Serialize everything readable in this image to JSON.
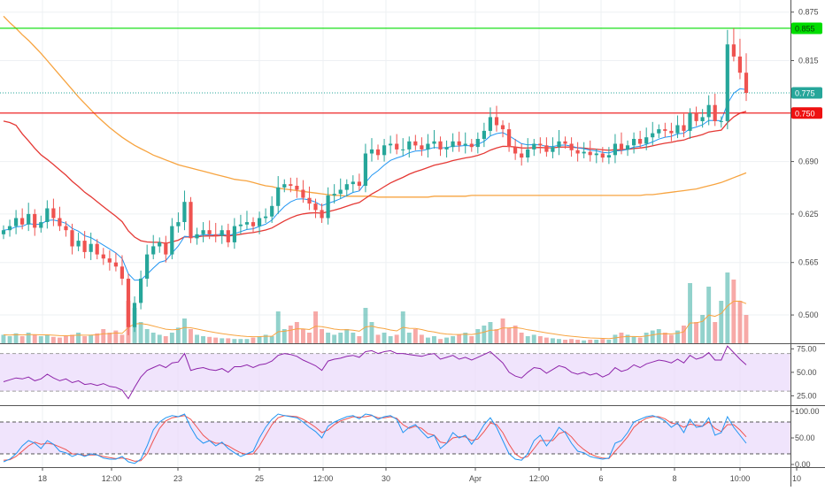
{
  "colors": {
    "up": "#26a69a",
    "down": "#ef5350",
    "ema_fast": "#2196f3",
    "ema_mid": "#e53935",
    "ema_slow": "#f7a440",
    "resistance": "#00dd00",
    "support": "#ee1111",
    "last_price": "#26a69a",
    "rsi_line": "#8e24aa",
    "rsi_band": "#e9d8fb",
    "stoch_k": "#2196f3",
    "stoch_d": "#ef5350",
    "stoch_band": "#e9d8fb",
    "grid": "#eef0f3",
    "axis_text": "#4a4a4a"
  },
  "chart_data": [
    {
      "type": "candlestick",
      "panel": "price",
      "x_ticks": [
        "18",
        "12:00",
        "23",
        "25",
        "12:00",
        "30",
        "Apr",
        "12:00",
        "6",
        "8",
        "10:00",
        "10"
      ],
      "y_ticks": [
        "0.875",
        "0.815",
        "0.750",
        "0.690",
        "0.625",
        "0.565",
        "0.500"
      ],
      "ylim": [
        0.465,
        0.89
      ],
      "price_tag_levels": [
        0.855,
        0.775,
        0.75
      ],
      "levels": [
        {
          "name": "resistance",
          "value": 0.855,
          "label": "0.855"
        },
        {
          "name": "last-price",
          "value": 0.775,
          "label": "0.775"
        },
        {
          "name": "support",
          "value": 0.75,
          "label": "0.750"
        }
      ],
      "candles_close": [
        0.605,
        0.61,
        0.62,
        0.612,
        0.625,
        0.608,
        0.615,
        0.632,
        0.62,
        0.61,
        0.605,
        0.585,
        0.592,
        0.578,
        0.588,
        0.575,
        0.57,
        0.565,
        0.56,
        0.545,
        0.485,
        0.515,
        0.545,
        0.575,
        0.585,
        0.59,
        0.575,
        0.61,
        0.615,
        0.64,
        0.595,
        0.6,
        0.605,
        0.6,
        0.598,
        0.605,
        0.59,
        0.61,
        0.612,
        0.615,
        0.61,
        0.62,
        0.622,
        0.635,
        0.658,
        0.662,
        0.66,
        0.655,
        0.645,
        0.638,
        0.63,
        0.62,
        0.648,
        0.65,
        0.655,
        0.662,
        0.665,
        0.66,
        0.7,
        0.705,
        0.698,
        0.71,
        0.712,
        0.705,
        0.705,
        0.715,
        0.71,
        0.705,
        0.712,
        0.715,
        0.705,
        0.708,
        0.715,
        0.71,
        0.712,
        0.708,
        0.718,
        0.728,
        0.745,
        0.735,
        0.73,
        0.708,
        0.7,
        0.695,
        0.705,
        0.712,
        0.71,
        0.702,
        0.708,
        0.715,
        0.712,
        0.704,
        0.7,
        0.702,
        0.698,
        0.7,
        0.695,
        0.698,
        0.712,
        0.705,
        0.71,
        0.718,
        0.712,
        0.72,
        0.725,
        0.73,
        0.728,
        0.725,
        0.735,
        0.728,
        0.75,
        0.74,
        0.745,
        0.76,
        0.74,
        0.74,
        0.835,
        0.82,
        0.8,
        0.775
      ],
      "candles_open": [
        0.6,
        0.605,
        0.61,
        0.62,
        0.612,
        0.625,
        0.608,
        0.615,
        0.632,
        0.62,
        0.61,
        0.605,
        0.585,
        0.592,
        0.578,
        0.588,
        0.575,
        0.57,
        0.565,
        0.56,
        0.545,
        0.485,
        0.515,
        0.545,
        0.575,
        0.585,
        0.59,
        0.575,
        0.61,
        0.615,
        0.64,
        0.595,
        0.6,
        0.605,
        0.6,
        0.598,
        0.605,
        0.59,
        0.61,
        0.612,
        0.615,
        0.61,
        0.62,
        0.622,
        0.635,
        0.658,
        0.662,
        0.66,
        0.655,
        0.645,
        0.638,
        0.63,
        0.62,
        0.648,
        0.65,
        0.655,
        0.662,
        0.665,
        0.66,
        0.7,
        0.705,
        0.698,
        0.71,
        0.712,
        0.705,
        0.705,
        0.715,
        0.71,
        0.705,
        0.712,
        0.715,
        0.705,
        0.708,
        0.715,
        0.71,
        0.712,
        0.708,
        0.718,
        0.728,
        0.745,
        0.735,
        0.73,
        0.708,
        0.7,
        0.695,
        0.705,
        0.712,
        0.71,
        0.702,
        0.708,
        0.715,
        0.712,
        0.704,
        0.7,
        0.702,
        0.698,
        0.7,
        0.695,
        0.698,
        0.712,
        0.705,
        0.71,
        0.718,
        0.712,
        0.72,
        0.725,
        0.73,
        0.728,
        0.725,
        0.735,
        0.728,
        0.75,
        0.74,
        0.745,
        0.76,
        0.74,
        0.74,
        0.835,
        0.82,
        0.8
      ],
      "ema_slow": [
        0.87,
        0.862,
        0.855,
        0.847,
        0.84,
        0.832,
        0.824,
        0.815,
        0.806,
        0.797,
        0.788,
        0.779,
        0.77,
        0.762,
        0.754,
        0.746,
        0.739,
        0.732,
        0.726,
        0.72,
        0.715,
        0.71,
        0.706,
        0.702,
        0.698,
        0.695,
        0.692,
        0.689,
        0.686,
        0.684,
        0.682,
        0.68,
        0.678,
        0.676,
        0.674,
        0.672,
        0.67,
        0.668,
        0.667,
        0.666,
        0.664,
        0.662,
        0.66,
        0.659,
        0.657,
        0.656,
        0.655,
        0.654,
        0.653,
        0.652,
        0.651,
        0.65,
        0.649,
        0.648,
        0.648,
        0.647,
        0.647,
        0.647,
        0.647,
        0.647,
        0.646,
        0.646,
        0.646,
        0.646,
        0.646,
        0.646,
        0.646,
        0.646,
        0.646,
        0.647,
        0.647,
        0.647,
        0.647,
        0.647,
        0.647,
        0.648,
        0.648,
        0.648,
        0.648,
        0.648,
        0.648,
        0.648,
        0.648,
        0.648,
        0.648,
        0.648,
        0.648,
        0.648,
        0.648,
        0.648,
        0.648,
        0.648,
        0.648,
        0.648,
        0.648,
        0.648,
        0.648,
        0.648,
        0.648,
        0.648,
        0.648,
        0.648,
        0.648,
        0.649,
        0.649,
        0.65,
        0.651,
        0.652,
        0.653,
        0.654,
        0.655,
        0.656,
        0.658,
        0.66,
        0.662,
        0.664,
        0.667,
        0.67,
        0.673,
        0.676
      ],
      "volume": [
        0.12,
        0.1,
        0.14,
        0.1,
        0.15,
        0.12,
        0.1,
        0.12,
        0.09,
        0.08,
        0.1,
        0.12,
        0.15,
        0.1,
        0.12,
        0.14,
        0.2,
        0.15,
        0.18,
        0.12,
        0.6,
        0.5,
        0.3,
        0.2,
        0.15,
        0.12,
        0.1,
        0.15,
        0.22,
        0.35,
        0.2,
        0.12,
        0.1,
        0.09,
        0.08,
        0.07,
        0.07,
        0.06,
        0.06,
        0.06,
        0.08,
        0.1,
        0.12,
        0.1,
        0.45,
        0.2,
        0.25,
        0.3,
        0.2,
        0.15,
        0.45,
        0.2,
        0.15,
        0.12,
        0.15,
        0.2,
        0.15,
        0.1,
        0.5,
        0.3,
        0.12,
        0.15,
        0.1,
        0.12,
        0.45,
        0.15,
        0.2,
        0.12,
        0.08,
        0.1,
        0.06,
        0.08,
        0.1,
        0.12,
        0.15,
        0.1,
        0.2,
        0.25,
        0.3,
        0.2,
        0.35,
        0.22,
        0.25,
        0.15,
        0.1,
        0.12,
        0.1,
        0.08,
        0.07,
        0.06,
        0.05,
        0.06,
        0.05,
        0.04,
        0.05,
        0.05,
        0.06,
        0.05,
        0.12,
        0.15,
        0.12,
        0.1,
        0.08,
        0.15,
        0.18,
        0.2,
        0.15,
        0.12,
        0.18,
        0.25,
        0.85,
        0.3,
        0.4,
        0.8,
        0.3,
        0.6,
        1.0,
        0.9,
        0.6,
        0.4
      ]
    },
    {
      "type": "line",
      "panel": "rsi",
      "y_ticks": [
        "75.00",
        "50.00",
        "25.00"
      ],
      "ylim": [
        15,
        80
      ],
      "bands": [
        30,
        70
      ],
      "values": [
        40,
        42,
        44,
        43,
        45,
        41,
        43,
        48,
        44,
        41,
        43,
        39,
        41,
        37,
        38,
        36,
        38,
        35,
        34,
        31,
        22,
        34,
        45,
        52,
        55,
        58,
        55,
        60,
        61,
        70,
        52,
        54,
        55,
        53,
        52,
        54,
        50,
        56,
        56,
        58,
        55,
        58,
        59,
        62,
        68,
        70,
        69,
        67,
        63,
        60,
        57,
        52,
        62,
        64,
        65,
        67,
        68,
        66,
        72,
        73,
        70,
        72,
        73,
        70,
        70,
        69,
        68,
        67,
        69,
        70,
        64,
        66,
        68,
        64,
        66,
        63,
        66,
        69,
        72,
        66,
        60,
        50,
        46,
        44,
        50,
        55,
        54,
        49,
        53,
        57,
        55,
        50,
        48,
        50,
        47,
        49,
        45,
        48,
        55,
        51,
        53,
        58,
        55,
        59,
        61,
        63,
        62,
        60,
        64,
        60,
        68,
        64,
        66,
        71,
        63,
        63,
        78,
        71,
        64,
        58
      ]
    },
    {
      "type": "line",
      "panel": "stochastic",
      "y_ticks": [
        "100.00",
        "50.00",
        "0.00"
      ],
      "ylim": [
        -5,
        110
      ],
      "bands": [
        20,
        80
      ],
      "k": [
        5,
        10,
        20,
        35,
        45,
        40,
        30,
        45,
        38,
        25,
        22,
        15,
        20,
        15,
        20,
        18,
        12,
        10,
        10,
        15,
        5,
        2,
        10,
        35,
        65,
        80,
        88,
        92,
        90,
        95,
        70,
        50,
        40,
        45,
        35,
        42,
        30,
        22,
        15,
        20,
        25,
        50,
        70,
        85,
        95,
        92,
        90,
        88,
        80,
        70,
        62,
        50,
        72,
        80,
        85,
        90,
        92,
        86,
        95,
        93,
        85,
        90,
        92,
        85,
        60,
        70,
        75,
        62,
        50,
        55,
        30,
        40,
        60,
        50,
        55,
        38,
        55,
        75,
        88,
        70,
        45,
        20,
        10,
        8,
        20,
        45,
        55,
        35,
        50,
        70,
        60,
        40,
        25,
        22,
        15,
        12,
        10,
        12,
        40,
        45,
        60,
        80,
        85,
        90,
        92,
        88,
        82,
        70,
        78,
        60,
        85,
        70,
        72,
        88,
        55,
        60,
        90,
        70,
        55,
        40
      ],
      "d": [
        8,
        9,
        15,
        25,
        35,
        42,
        38,
        40,
        38,
        33,
        28,
        20,
        19,
        17,
        18,
        18,
        15,
        13,
        11,
        12,
        10,
        6,
        7,
        20,
        45,
        68,
        82,
        88,
        90,
        92,
        85,
        70,
        55,
        45,
        40,
        40,
        35,
        28,
        22,
        19,
        20,
        35,
        55,
        75,
        88,
        92,
        91,
        90,
        85,
        78,
        70,
        60,
        65,
        75,
        82,
        86,
        90,
        89,
        90,
        92,
        88,
        88,
        90,
        87,
        75,
        68,
        72,
        68,
        58,
        55,
        42,
        40,
        50,
        52,
        52,
        45,
        48,
        62,
        78,
        75,
        60,
        38,
        20,
        12,
        15,
        30,
        45,
        45,
        45,
        58,
        62,
        52,
        38,
        28,
        20,
        15,
        12,
        11,
        25,
        38,
        52,
        70,
        80,
        87,
        90,
        90,
        86,
        78,
        76,
        70,
        76,
        74,
        72,
        80,
        68,
        62,
        75,
        75,
        65,
        52
      ]
    }
  ]
}
